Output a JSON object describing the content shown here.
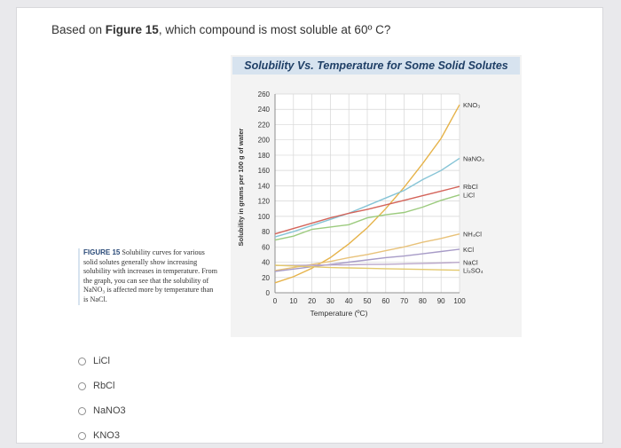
{
  "question": {
    "prefix": "Based on ",
    "figure_ref": "Figure 15",
    "suffix": ", which compound is most soluble at 60º C?"
  },
  "caption": {
    "figure_label": "FIGURE 15",
    "text": "Solubility curves for various solid solutes generally show increasing solubility with increases in temperature. From the graph, you can see that the solubility of NaNO₃ is affected more by temperature than is NaCl."
  },
  "options": [
    {
      "label": "LiCl"
    },
    {
      "label": "RbCl"
    },
    {
      "label": "NaNO3"
    },
    {
      "label": "KNO3"
    }
  ],
  "chart_data": {
    "type": "line",
    "title": "Solubility Vs. Temperature for Some Solid Solutes",
    "xlabel": "Temperature (ºC)",
    "ylabel": "Solubility in grams per 100 g of water",
    "xlim": [
      0,
      100
    ],
    "ylim": [
      0,
      260
    ],
    "x_ticks": [
      0,
      10,
      20,
      30,
      40,
      50,
      60,
      70,
      80,
      90,
      100
    ],
    "y_ticks": [
      0,
      20,
      40,
      60,
      80,
      100,
      120,
      140,
      160,
      180,
      200,
      220,
      240,
      260
    ],
    "grid": true,
    "series": [
      {
        "name": "KNO₃",
        "color": "#e6b34a",
        "x": [
          0,
          10,
          20,
          30,
          40,
          50,
          60,
          70,
          80,
          90,
          100
        ],
        "y": [
          13,
          21,
          32,
          46,
          64,
          85,
          110,
          138,
          169,
          202,
          246
        ]
      },
      {
        "name": "NaNO₃",
        "color": "#86c4d6",
        "x": [
          0,
          10,
          20,
          30,
          40,
          50,
          60,
          70,
          80,
          90,
          100
        ],
        "y": [
          73,
          80,
          88,
          96,
          104,
          114,
          124,
          134,
          148,
          160,
          176
        ]
      },
      {
        "name": "RbCl",
        "color": "#d4645a",
        "x": [
          0,
          10,
          20,
          30,
          40,
          50,
          60,
          70,
          80,
          90,
          100
        ],
        "y": [
          77,
          84,
          91,
          98,
          104,
          109,
          115,
          121,
          127,
          133,
          139
        ]
      },
      {
        "name": "LiCl",
        "color": "#9ccb7e",
        "x": [
          0,
          10,
          20,
          30,
          40,
          50,
          60,
          70,
          80,
          90,
          100
        ],
        "y": [
          69,
          74,
          83,
          86,
          89,
          98,
          102,
          105,
          112,
          121,
          128
        ]
      },
      {
        "name": "NH₄Cl",
        "color": "#e8c27a",
        "x": [
          0,
          10,
          20,
          30,
          40,
          50,
          60,
          70,
          80,
          90,
          100
        ],
        "y": [
          29,
          33,
          37,
          41,
          46,
          50,
          55,
          60,
          66,
          71,
          77
        ]
      },
      {
        "name": "KCl",
        "color": "#a79bc7",
        "x": [
          0,
          10,
          20,
          30,
          40,
          50,
          60,
          70,
          80,
          90,
          100
        ],
        "y": [
          28,
          31,
          34,
          37,
          40,
          43,
          46,
          48,
          51,
          54,
          57
        ]
      },
      {
        "name": "NaCl",
        "color": "#b9a6c9",
        "x": [
          0,
          10,
          20,
          30,
          40,
          50,
          60,
          70,
          80,
          90,
          100
        ],
        "y": [
          35.7,
          35.8,
          36,
          36.3,
          36.6,
          37,
          37.3,
          37.8,
          38.4,
          39,
          39.8
        ]
      },
      {
        "name": "Li₂SO₄",
        "color": "#e3c86c",
        "x": [
          0,
          10,
          20,
          30,
          40,
          50,
          60,
          70,
          80,
          90,
          100
        ],
        "y": [
          36,
          35,
          34,
          33,
          32.5,
          32,
          31.5,
          31,
          30.5,
          30,
          29.5
        ]
      }
    ]
  }
}
